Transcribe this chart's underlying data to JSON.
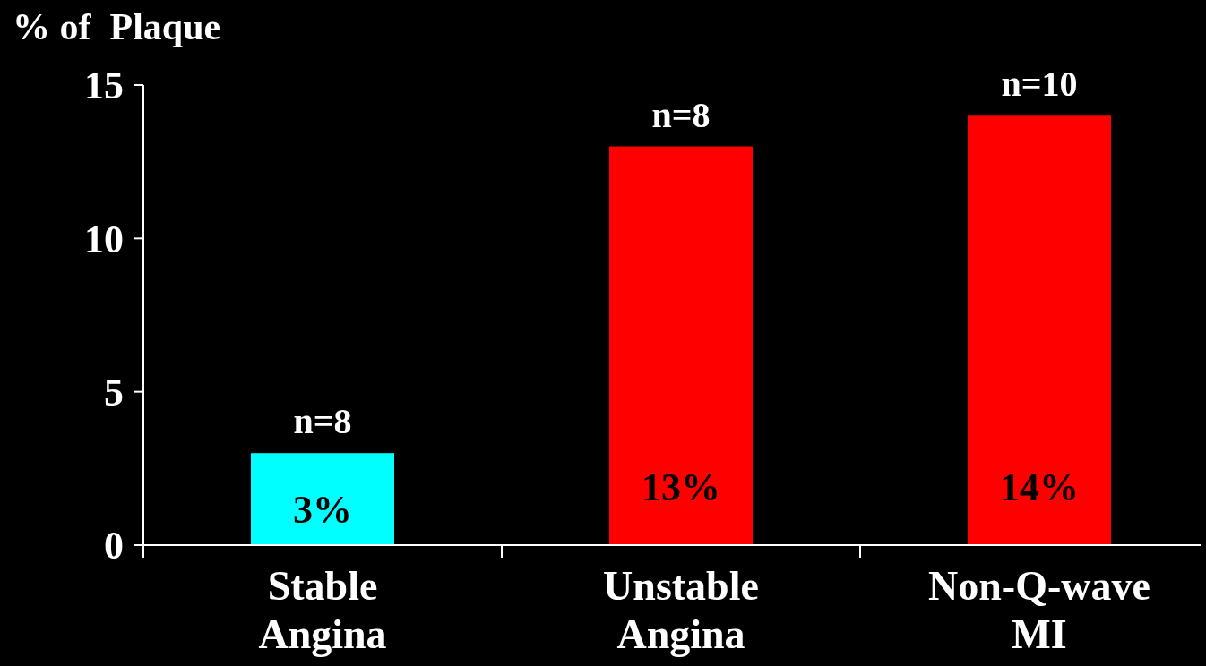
{
  "chart_data": {
    "type": "bar",
    "ylabel": "% of  Plaque",
    "categories": [
      "Stable Angina",
      "Unstable Angina",
      "Non-Q-wave MI"
    ],
    "values": [
      3,
      13,
      14
    ],
    "colors": [
      "#00ffff",
      "#ff0000",
      "#ff0000"
    ],
    "value_labels": [
      "3%",
      "13%",
      "14%"
    ],
    "ylim": [
      0,
      15
    ],
    "yticks": [
      0,
      5,
      10,
      15
    ],
    "grid": false,
    "annotations": [
      {
        "text": "n=8",
        "x": "Stable Angina",
        "y": 3
      },
      {
        "text": "n=8",
        "x": "Unstable Angina",
        "y": 13
      },
      {
        "text": "n=10",
        "x": "Non-Q-wave MI",
        "y": 14
      }
    ]
  }
}
